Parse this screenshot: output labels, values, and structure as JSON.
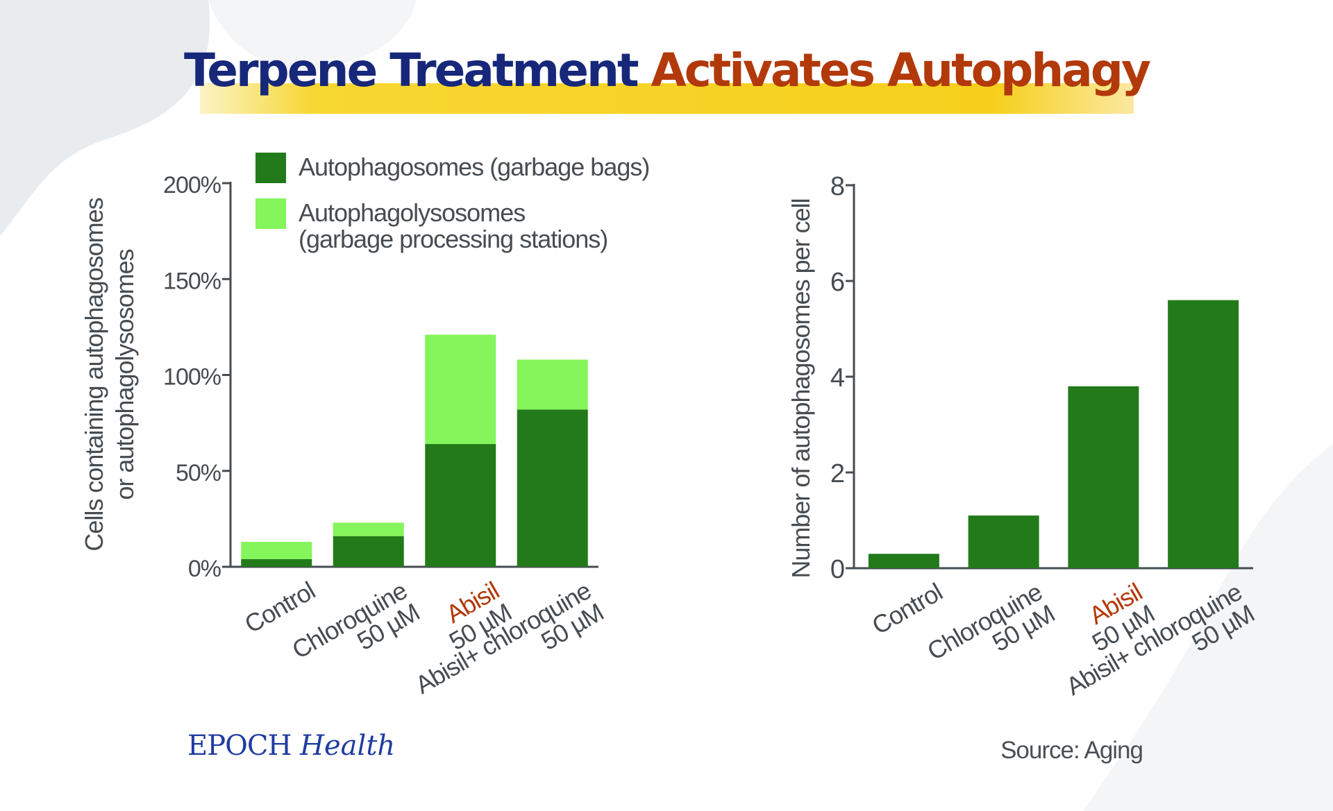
{
  "title_part1": "Terpene Treatment",
  "title_part2": "Activates Autophagy",
  "colors": {
    "dark_green": "#227a1a",
    "light_green": "#84f55a",
    "title_navy": "#17287a",
    "accent_red": "#b2390a",
    "axis_gray": "#454c52"
  },
  "brand": {
    "part1": "EPOCH",
    "part2": "Health"
  },
  "source": "Source: Aging",
  "chart_data": [
    {
      "type": "bar",
      "stacked": true,
      "ylabel_lines": [
        "Cells containing autophagosomes",
        "or autophagolysosomes"
      ],
      "yticks": [
        "0%",
        "50%",
        "100%",
        "150%",
        "200%"
      ],
      "ylim": [
        0,
        200
      ],
      "legend": [
        {
          "label_lines": [
            "Autophagosomes (garbage bags)"
          ],
          "color": "#227a1a"
        },
        {
          "label_lines": [
            "Autophagolysosomes",
            "(garbage processing stations)"
          ],
          "color": "#84f55a"
        }
      ],
      "legend_position": "top-left",
      "categories": [
        [
          {
            "t": "Control",
            "c": "#454c52"
          }
        ],
        [
          {
            "t": "Chloroquine",
            "c": "#454c52"
          },
          {
            "t": "50 µM",
            "c": "#454c52"
          }
        ],
        [
          {
            "t": "Abisil",
            "c": "#b2390a"
          },
          {
            "t": "50 µM",
            "c": "#454c52"
          }
        ],
        [
          {
            "t": "Abisil+ chloroquine",
            "c": "#454c52"
          },
          {
            "t": "50 µM",
            "c": "#454c52"
          }
        ]
      ],
      "series": [
        {
          "name": "Autophagosomes (garbage bags)",
          "values": [
            4,
            16,
            64,
            82
          ]
        },
        {
          "name": "Autophagolysosomes (garbage processing stations)",
          "values": [
            9,
            7,
            57,
            26
          ]
        }
      ]
    },
    {
      "type": "bar",
      "ylabel_lines": [
        "Number of autophagosomes per cell"
      ],
      "yticks": [
        "0",
        "2",
        "4",
        "6",
        "8"
      ],
      "ylim": [
        0,
        8
      ],
      "categories": [
        [
          {
            "t": "Control",
            "c": "#454c52"
          }
        ],
        [
          {
            "t": "Chloroquine",
            "c": "#454c52"
          },
          {
            "t": "50 µM",
            "c": "#454c52"
          }
        ],
        [
          {
            "t": "Abisil",
            "c": "#b2390a"
          },
          {
            "t": "50 µM",
            "c": "#454c52"
          }
        ],
        [
          {
            "t": "Abisil+ chloroquine",
            "c": "#454c52"
          },
          {
            "t": "50 µM",
            "c": "#454c52"
          }
        ]
      ],
      "values": [
        0.3,
        1.1,
        3.8,
        5.6
      ]
    }
  ]
}
